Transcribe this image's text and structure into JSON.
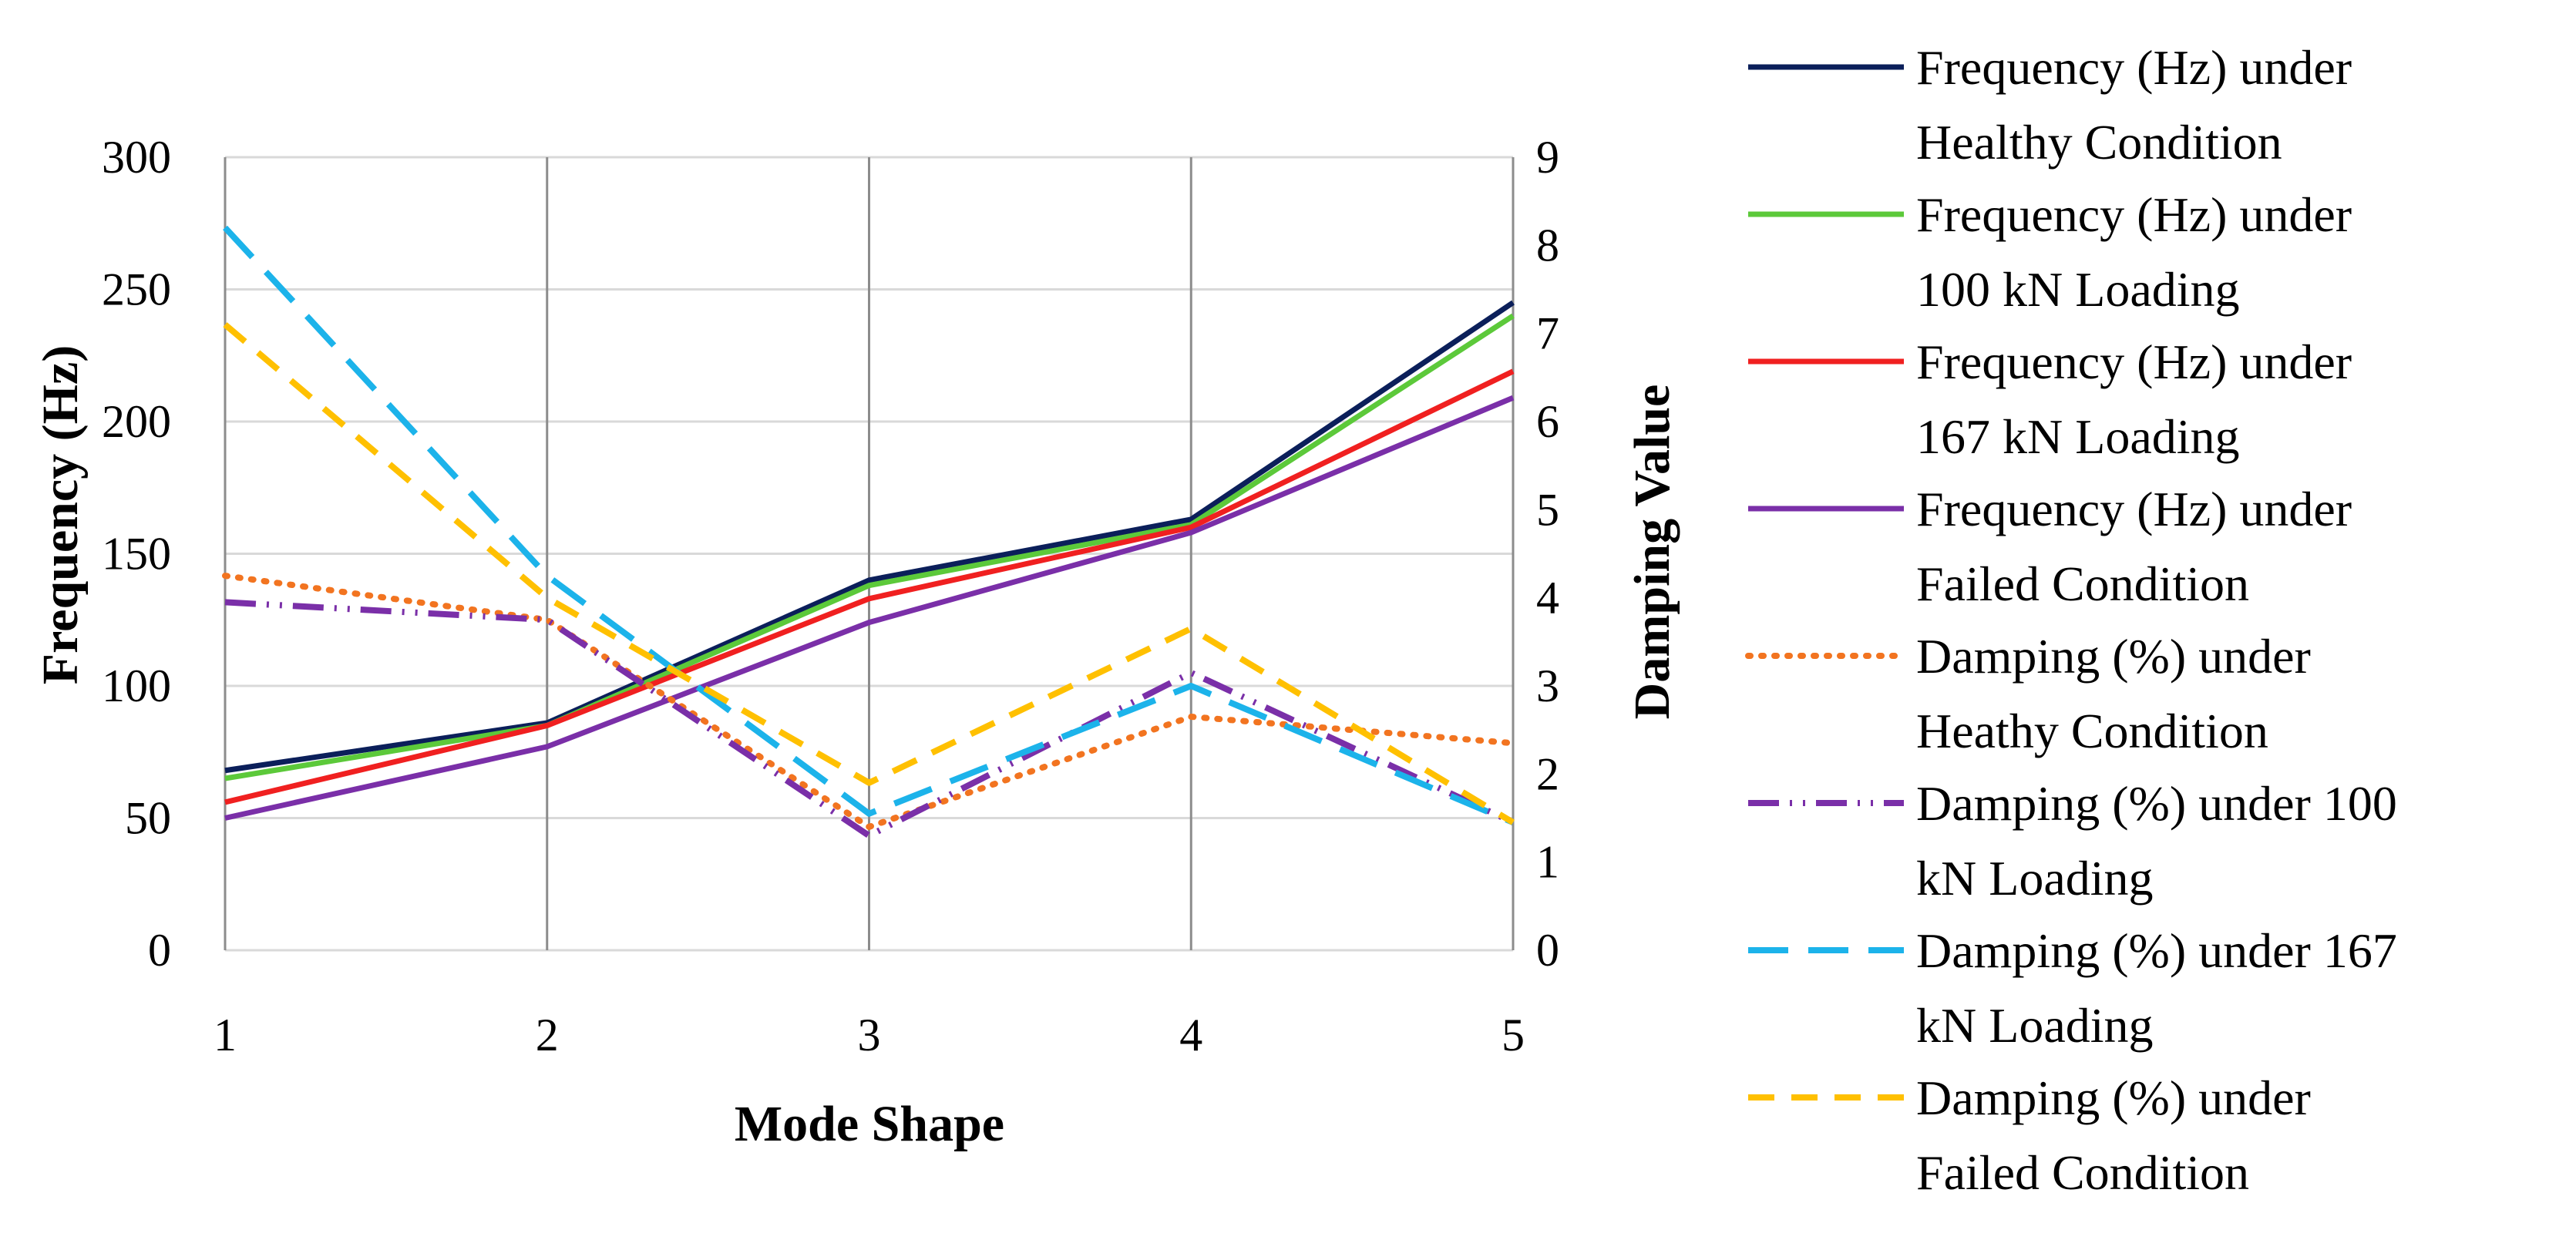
{
  "chart_data": {
    "type": "line",
    "title": "",
    "xlabel": "Mode Shape",
    "ylabel": "Frequency (Hz)",
    "y2label": "Damping Value",
    "categories": [
      "1",
      "2",
      "3",
      "4",
      "5"
    ],
    "ylim": [
      0,
      300
    ],
    "y2lim": [
      0,
      9
    ],
    "yticks": [
      "0",
      "50",
      "100",
      "150",
      "200",
      "250",
      "300"
    ],
    "y2ticks": [
      "0",
      "1",
      "2",
      "3",
      "4",
      "5",
      "6",
      "7",
      "8",
      "9"
    ],
    "grid": "horizontal and vertical",
    "legend_position": "right",
    "series": [
      {
        "name": "Frequency (Hz) under Healthy Condition",
        "legend_lines": [
          "Frequency (Hz) under",
          "Healthy Condition"
        ],
        "axis": "left",
        "color": "#0b1f5a",
        "dash": "",
        "values": [
          68,
          86,
          140,
          163,
          245
        ]
      },
      {
        "name": "Frequency (Hz) under 100 kN Loading",
        "legend_lines": [
          "Frequency (Hz) under",
          "100 kN Loading"
        ],
        "axis": "left",
        "color": "#5cc93a",
        "dash": "",
        "values": [
          65,
          85,
          138,
          161,
          240
        ]
      },
      {
        "name": "Frequency (Hz) under 167 kN Loading",
        "legend_lines": [
          "Frequency (Hz) under",
          "167 kN Loading"
        ],
        "axis": "left",
        "color": "#f02020",
        "dash": "",
        "values": [
          56,
          85,
          133,
          160,
          219
        ]
      },
      {
        "name": "Frequency (Hz) under Failed Condition",
        "legend_lines": [
          "Frequency (Hz) under",
          "Failed Condition"
        ],
        "axis": "left",
        "color": "#7a2fa8",
        "dash": "",
        "values": [
          50,
          77,
          124,
          158,
          209
        ]
      },
      {
        "name": "Damping (%) under Heathy Condition",
        "legend_lines": [
          "Damping (%) under",
          "Heathy Condition"
        ],
        "axis": "right",
        "color": "#f27420",
        "dash": "3,14",
        "values": [
          4.25,
          3.75,
          1.4,
          2.65,
          2.35
        ]
      },
      {
        "name": "Damping (%) under 100 kN Loading",
        "legend_lines": [
          "Damping (%) under 100",
          "kN Loading"
        ],
        "axis": "right",
        "color": "#7a2fa8",
        "dash": "40,14,3,14,3,14",
        "values": [
          3.95,
          3.75,
          1.3,
          3.15,
          1.45
        ]
      },
      {
        "name": "Damping (%) under 167 kN Loading",
        "legend_lines": [
          "Damping (%) under 167",
          "kN Loading"
        ],
        "axis": "right",
        "color": "#1cb3ea",
        "dash": "52,26",
        "values": [
          8.2,
          4.25,
          1.55,
          3.0,
          1.45
        ]
      },
      {
        "name": "Damping (%) under Failed Condition",
        "legend_lines": [
          "Damping (%) under",
          "Failed Condition"
        ],
        "axis": "right",
        "color": "#ffc000",
        "dash": "34,22",
        "values": [
          7.1,
          4.0,
          1.9,
          3.65,
          1.45
        ]
      }
    ]
  }
}
